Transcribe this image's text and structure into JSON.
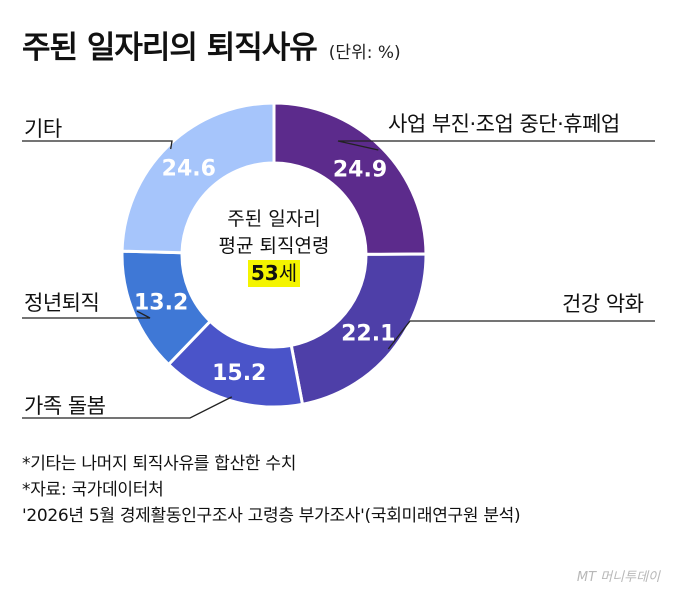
{
  "header": {
    "title": "주된 일자리의 퇴직사유",
    "unit": "(단위: %)"
  },
  "center": {
    "line1": "주된 일자리",
    "line2": "평균 퇴직연령",
    "age_value": "53",
    "age_suffix": "세"
  },
  "footnotes": [
    "*기타는 나머지 퇴직사유를 합산한 수치",
    "*자료: 국가데이터처",
    "'2026년 5월 경제활동인구조사 고령층 부가조사'(국회미래연구원 분석)"
  ],
  "watermark": "MT 머니투데이",
  "chart_data": {
    "type": "pie",
    "donut": true,
    "categories": [
      "사업 부진·조업 중단·휴폐업",
      "건강 악화",
      "가족 돌봄",
      "정년퇴직",
      "기타"
    ],
    "values": [
      24.9,
      22.1,
      15.2,
      13.2,
      24.6
    ],
    "value_labels": [
      "24.9",
      "22.1",
      "15.2",
      "13.2",
      "24.6"
    ],
    "colors": [
      "#5c2b8c",
      "#4e3fa8",
      "#4a54c9",
      "#3f78d6",
      "#a6c5fb"
    ]
  }
}
